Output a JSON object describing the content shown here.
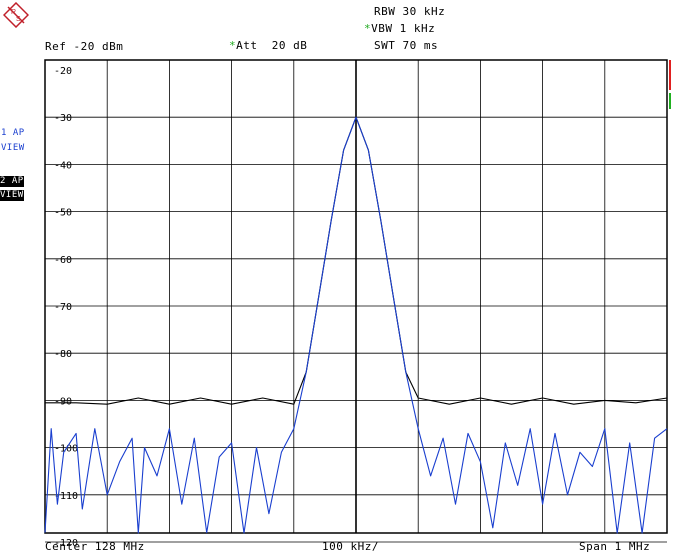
{
  "header": {
    "rbw": "RBW 30 kHz",
    "vbw": "VBW 1 kHz",
    "vbw_marker": "*",
    "swt": "SWT 70 ms",
    "ref": "Ref -20 dBm",
    "att": "Att  20 dB",
    "att_marker": "*"
  },
  "traces": {
    "trace1_line1": "1 AP",
    "trace1_line2": "VIEW",
    "trace2_line1": "2 AP",
    "trace2_line2": "VIEW"
  },
  "footer": {
    "center": "Center 128 MHz",
    "per_div": "100 kHz/",
    "span": "Span 1 MHz"
  },
  "colors": {
    "trace1": "#1a3fcf",
    "trace2": "#000000",
    "grid": "#000000",
    "limit_red": "#e02020",
    "limit_green": "#20b020",
    "logo": "#c0202a"
  },
  "chart_data": {
    "type": "line",
    "title": "",
    "xlabel": "",
    "ylabel": "",
    "xlim": [
      127.5,
      128.5
    ],
    "x_unit": "MHz",
    "ylim": [
      -123,
      -18
    ],
    "y_unit": "dBm",
    "y_tick_labels": [
      "-20",
      "-30",
      "-40",
      "-50",
      "-60",
      "-70",
      "-80",
      "-90",
      "-100",
      "-110",
      "-120"
    ],
    "grid": true,
    "center_mhz": 128,
    "span_mhz": 1,
    "peak": {
      "x": 128.0,
      "y": -30
    },
    "series": [
      {
        "trace": 2,
        "color": "#000000",
        "x": [
          127.5,
          127.55,
          127.6,
          127.65,
          127.7,
          127.75,
          127.8,
          127.85,
          127.9,
          127.92,
          127.94,
          127.96,
          127.98,
          128.0,
          128.02,
          128.04,
          128.06,
          128.08,
          128.1,
          128.15,
          128.2,
          128.25,
          128.3,
          128.35,
          128.4,
          128.45,
          128.5
        ],
        "values": [
          -90.5,
          -90.5,
          -90.8,
          -89.5,
          -90.8,
          -89.5,
          -90.8,
          -89.5,
          -90.8,
          -84,
          -68,
          -52,
          -37,
          -30,
          -37,
          -52,
          -68,
          -84,
          -89.5,
          -90.8,
          -89.5,
          -90.8,
          -89.5,
          -90.8,
          -90,
          -90.5,
          -89.5
        ]
      },
      {
        "trace": 1,
        "color": "#1a3fcf",
        "x": [
          127.5,
          127.51,
          127.52,
          127.53,
          127.55,
          127.56,
          127.58,
          127.6,
          127.62,
          127.64,
          127.65,
          127.66,
          127.68,
          127.7,
          127.72,
          127.74,
          127.76,
          127.78,
          127.8,
          127.82,
          127.84,
          127.86,
          127.88,
          127.9,
          127.92,
          127.94,
          127.96,
          127.98,
          128.0,
          128.02,
          128.04,
          128.06,
          128.08,
          128.1,
          128.12,
          128.14,
          128.16,
          128.18,
          128.2,
          128.22,
          128.24,
          128.26,
          128.28,
          128.3,
          128.32,
          128.34,
          128.36,
          128.38,
          128.4,
          128.42,
          128.44,
          128.46,
          128.48,
          128.5
        ],
        "values": [
          -118,
          -96,
          -112,
          -101,
          -97,
          -113,
          -96,
          -110,
          -103,
          -98,
          -120,
          -100,
          -106,
          -96,
          -112,
          -98,
          -118,
          -102,
          -99,
          -124,
          -100,
          -114,
          -101,
          -96,
          -84,
          -68,
          -52,
          -37,
          -30,
          -37,
          -52,
          -68,
          -84,
          -96,
          -106,
          -98,
          -112,
          -97,
          -103,
          -117,
          -99,
          -108,
          -96,
          -112,
          -97,
          -110,
          -101,
          -104,
          -96,
          -119,
          -99,
          -122,
          -98,
          -96
        ]
      }
    ]
  }
}
